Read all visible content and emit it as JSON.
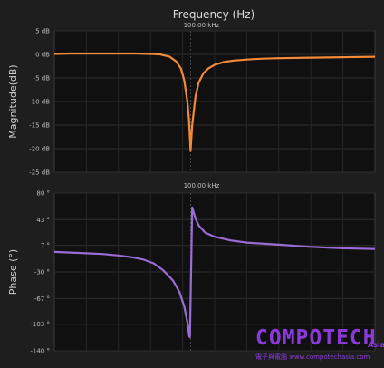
{
  "header": {
    "title": "Frequency (Hz)"
  },
  "chart_data": [
    {
      "type": "line",
      "name": "magnitude",
      "ylabel": "Magnitude(dB)",
      "ylim": [
        -25,
        5
      ],
      "y_ticks": [
        5,
        0,
        -5,
        -10,
        -15,
        -20,
        -25
      ],
      "y_tick_labels": [
        "5 dB",
        "0 dB",
        "-5 dB",
        "-10 dB",
        "-15 dB",
        "-20 dB",
        "-25 dB"
      ],
      "xlim": [
        0,
        1
      ],
      "marker": {
        "x": 0.425,
        "label": "100.00 kHz"
      },
      "grid": true,
      "line_color": "#f28a38",
      "series": [
        {
          "x": [
            0,
            0.05,
            0.1,
            0.15,
            0.2,
            0.25,
            0.3,
            0.33,
            0.36,
            0.38,
            0.395,
            0.405,
            0.415,
            0.42,
            0.425,
            0.43,
            0.44,
            0.45,
            0.465,
            0.48,
            0.5,
            0.53,
            0.56,
            0.6,
            0.65,
            0.7,
            0.8,
            0.9,
            1.0
          ],
          "y": [
            0.1,
            0.2,
            0.2,
            0.2,
            0.2,
            0.2,
            0.1,
            0,
            -0.5,
            -1.5,
            -3,
            -5.5,
            -10,
            -14,
            -20.5,
            -15,
            -9,
            -6,
            -4,
            -3,
            -2.2,
            -1.6,
            -1.3,
            -1.1,
            -0.9,
            -0.8,
            -0.7,
            -0.6,
            -0.5
          ]
        }
      ]
    },
    {
      "type": "line",
      "name": "phase",
      "ylabel": "Phase (°)",
      "ylim": [
        -140,
        80
      ],
      "y_ticks": [
        80,
        43,
        7,
        -30,
        -67,
        -103,
        -140
      ],
      "y_tick_labels": [
        "80 °",
        "43 °",
        "7 °",
        "-30 °",
        "-67 °",
        "-103 °",
        "-140 °"
      ],
      "xlim": [
        0,
        1
      ],
      "marker": {
        "x": 0.425,
        "label": "100.00 kHz"
      },
      "grid": true,
      "line_color": "#9a6cd6",
      "series": [
        {
          "x": [
            0,
            0.05,
            0.1,
            0.15,
            0.2,
            0.25,
            0.28,
            0.31,
            0.34,
            0.37,
            0.39,
            0.405,
            0.415,
            0.421,
            0.423,
            0.43,
            0.44,
            0.45,
            0.47,
            0.5,
            0.55,
            0.6,
            0.7,
            0.8,
            0.9,
            1.0
          ],
          "y": [
            -2,
            -3,
            -4,
            -5,
            -7,
            -10,
            -13,
            -18,
            -28,
            -42,
            -58,
            -78,
            -100,
            -120,
            -121,
            60,
            45,
            35,
            25,
            19,
            14,
            11,
            8,
            5,
            3,
            2
          ]
        }
      ]
    }
  ],
  "watermark": {
    "main": "COMPOTECH",
    "suffix": "Asia",
    "sub": "電子與電腦 www.compotechasia.com"
  }
}
